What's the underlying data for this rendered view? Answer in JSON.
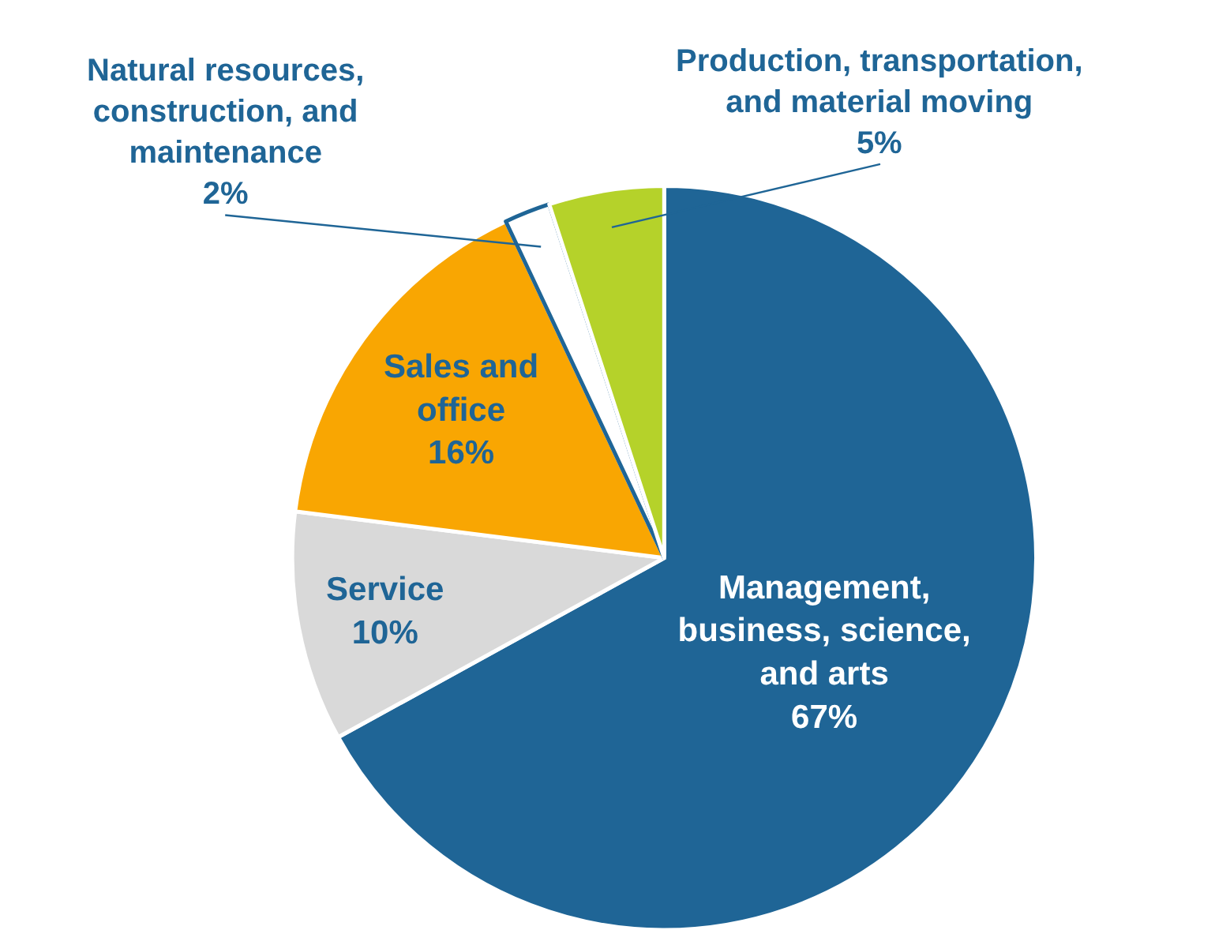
{
  "chart_data": {
    "type": "pie",
    "categories": [
      "Management, business, science, and arts",
      "Service",
      "Sales and office",
      "Natural resources, construction, and maintenance",
      "Production, transportation, and material moving"
    ],
    "values": [
      67,
      10,
      16,
      2,
      5
    ],
    "value_labels": [
      "67%",
      "10%",
      "16%",
      "2%",
      "5%"
    ],
    "colors": [
      "#1f6596",
      "#d9d9d9",
      "#f9a602",
      "#ffffff",
      "#b5d22a"
    ]
  }
}
